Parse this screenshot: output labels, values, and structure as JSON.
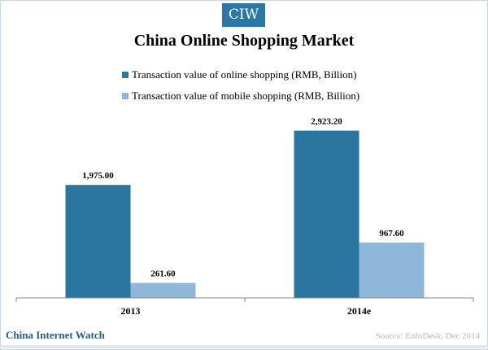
{
  "logo_text": "CIW",
  "footer": {
    "brand": "China Internet Watch",
    "source": "Source: EnfoDesk, Dec 2014"
  },
  "chart_data": {
    "type": "bar",
    "title": "China Online Shopping Market",
    "categories": [
      "2013",
      "2014e"
    ],
    "series": [
      {
        "name": "Transaction value of online shopping (RMB, Billion)",
        "values": [
          1975.0,
          2923.2
        ],
        "labels": [
          "1,975.00",
          "2,923.20"
        ],
        "color": "#2a76a0"
      },
      {
        "name": "Transaction value of mobile shopping (RMB, Billion)",
        "values": [
          261.6,
          967.6
        ],
        "labels": [
          "261.60",
          "967.60"
        ],
        "color": "#8fb7da"
      }
    ],
    "ylim": [
      0,
      3500
    ],
    "grid": false,
    "legend_position": "top"
  }
}
